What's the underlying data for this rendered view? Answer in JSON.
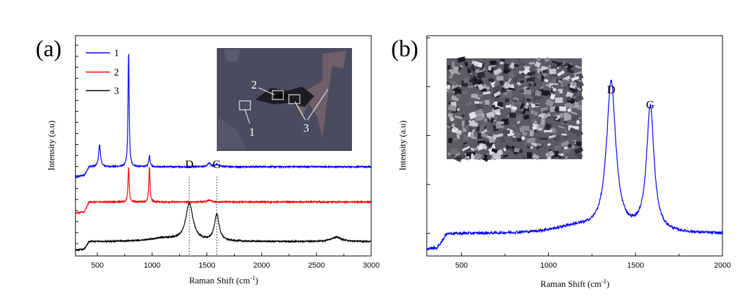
{
  "chart_data": [
    {
      "panel": "(a)",
      "type": "line",
      "xlabel": "Raman Shift (cm",
      "xlabel_sup": "-1",
      "xlabel_tail": ")",
      "ylabel": "Intensity (a.u)",
      "xlim": [
        300,
        3000
      ],
      "xticks": [
        500,
        1000,
        1500,
        2000,
        2500,
        3000
      ],
      "ylim": [
        0,
        100
      ],
      "legend_position": "top-left",
      "series": [
        {
          "name": "1",
          "color": "#0000ff",
          "baseline": 40.5,
          "start": [
            [
              300,
              36.0
            ],
            [
              380,
              36.5
            ],
            [
              420,
              40.0
            ]
          ],
          "peaks": [
            [
              520,
              10,
              10
            ],
            [
              785,
              52,
              6
            ],
            [
              975,
              5,
              7
            ],
            [
              1520,
              1.5,
              15
            ],
            [
              1590,
              1.0,
              25
            ]
          ]
        },
        {
          "name": "2",
          "color": "#ff0000",
          "baseline": 24.5,
          "start": [
            [
              300,
              19.5
            ],
            [
              380,
              20.0
            ],
            [
              420,
              24.0
            ]
          ],
          "peaks": [
            [
              785,
              16,
              6
            ],
            [
              975,
              16,
              6
            ],
            [
              1520,
              0.8,
              25
            ]
          ]
        },
        {
          "name": "3",
          "color": "#000000",
          "baseline": 6.5,
          "start": [
            [
              300,
              2.5
            ],
            [
              380,
              3.0
            ],
            [
              420,
              6.0
            ]
          ],
          "peaks": [
            [
              1340,
              17,
              40
            ],
            [
              1590,
              12,
              26
            ],
            [
              2680,
              2.0,
              60
            ],
            [
              1100,
              1.5,
              150
            ]
          ]
        }
      ],
      "peak_labels": [
        {
          "text": "D",
          "x": 1340
        },
        {
          "text": "G",
          "x": 1590
        }
      ],
      "inset": {
        "description_numbers": [
          "1",
          "2",
          "3"
        ]
      }
    },
    {
      "panel": "(b)",
      "type": "line",
      "xlabel": "Raman Shift (cm",
      "xlabel_sup": "-1",
      "xlabel_tail": ")",
      "ylabel": "Intensity (a.u)",
      "xlim": [
        300,
        2000
      ],
      "xticks": [
        500,
        1000,
        1500,
        2000
      ],
      "ylim": [
        0,
        100
      ],
      "series": [
        {
          "name": "",
          "color": "#0000ff",
          "baseline": 10.0,
          "start": [
            [
              300,
              3.0
            ],
            [
              360,
              3.5
            ],
            [
              420,
              10.5
            ]
          ],
          "peaks": [
            [
              1360,
              68,
              32
            ],
            [
              1585,
              57,
              26
            ],
            [
              1150,
              3.0,
              150
            ]
          ]
        }
      ],
      "peak_labels": [
        {
          "text": "D",
          "x": 1360
        },
        {
          "text": "G",
          "x": 1585
        }
      ]
    }
  ]
}
